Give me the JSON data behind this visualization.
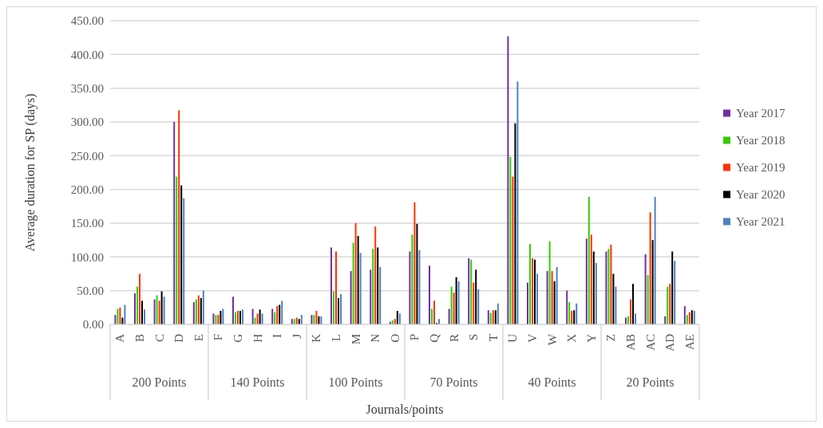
{
  "chart_data": {
    "type": "bar",
    "xlabel": "Journals/points",
    "ylabel": "Average duration for SP (days)",
    "categories": [
      "A",
      "B",
      "C",
      "D",
      "E",
      "F",
      "G",
      "H",
      "I",
      "J",
      "K",
      "L",
      "M",
      "N",
      "O",
      "P",
      "Q",
      "R",
      "S",
      "T",
      "U",
      "V",
      "W",
      "X",
      "Y",
      "Z",
      "AB",
      "AC",
      "AD",
      "AE"
    ],
    "series": [
      {
        "name": "Year 2017",
        "color": "#7030a0",
        "values": [
          14,
          46,
          37,
          300,
          33,
          16,
          41,
          23,
          23,
          8,
          14,
          114,
          79,
          81,
          4,
          108,
          87,
          23,
          98,
          21,
          427,
          62,
          79,
          50,
          127,
          108,
          10,
          104,
          12,
          27
        ]
      },
      {
        "name": "Year 2018",
        "color": "#33cc00",
        "values": [
          23,
          56,
          43,
          219,
          37,
          14,
          18,
          10,
          18,
          8,
          14,
          49,
          121,
          112,
          6,
          133,
          23,
          56,
          96,
          17,
          248,
          119,
          123,
          33,
          189,
          112,
          12,
          73,
          56,
          14
        ]
      },
      {
        "name": "Year 2019",
        "color": "#ff3300",
        "values": [
          25,
          75,
          35,
          317,
          43,
          14,
          20,
          16,
          27,
          10,
          20,
          108,
          150,
          145,
          8,
          181,
          35,
          47,
          62,
          21,
          219,
          98,
          79,
          20,
          133,
          118,
          37,
          166,
          60,
          18
        ]
      },
      {
        "name": "Year 2020",
        "color": "#000000",
        "values": [
          10,
          35,
          49,
          206,
          39,
          20,
          20,
          22,
          29,
          8,
          12,
          39,
          131,
          114,
          20,
          149,
          2,
          70,
          81,
          21,
          298,
          96,
          64,
          21,
          108,
          75,
          60,
          125,
          108,
          21
        ]
      },
      {
        "name": "Year 2021",
        "color": "#4f81bd",
        "values": [
          29,
          22,
          41,
          187,
          50,
          23,
          22,
          16,
          35,
          14,
          12,
          45,
          106,
          85,
          16,
          110,
          8,
          64,
          52,
          31,
          360,
          75,
          85,
          31,
          91,
          56,
          16,
          189,
          94,
          20
        ]
      }
    ],
    "ylim": [
      0,
      450
    ],
    "yticks": [
      {
        "value": 0,
        "label": "0.00"
      },
      {
        "value": 50,
        "label": "50.00"
      },
      {
        "value": 100,
        "label": "100.00"
      },
      {
        "value": 150,
        "label": "150.00"
      },
      {
        "value": 200,
        "label": "200.00"
      },
      {
        "value": 250,
        "label": "250.00"
      },
      {
        "value": 300,
        "label": "300.00"
      },
      {
        "value": 350,
        "label": "350.00"
      },
      {
        "value": 400,
        "label": "400.00"
      },
      {
        "value": 450,
        "label": "450.00"
      }
    ],
    "grid": "y",
    "legend": "right",
    "annotations": [
      "200 Points",
      "140 Points",
      "100 Points",
      "70 Points",
      "40 Points",
      "20 Points"
    ]
  }
}
